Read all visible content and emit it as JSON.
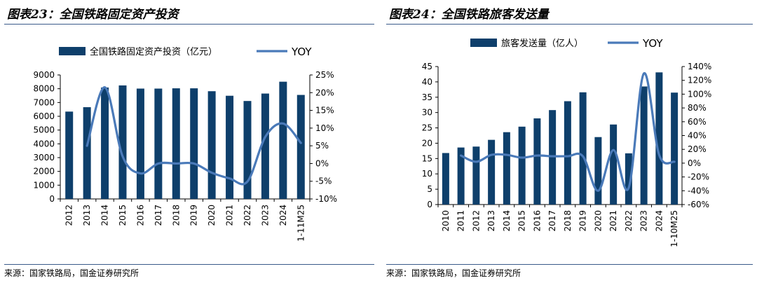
{
  "colors": {
    "bar": "#0e3f6b",
    "line": "#4a7ab9",
    "rule": "#3a5a8a"
  },
  "chart_data": [
    {
      "type": "bar",
      "figure_title": "图表23：全国铁路固定资产投资",
      "source": "来源：国家铁路局，国金证券研究所",
      "categories": [
        "2012",
        "2013",
        "2014",
        "2015",
        "2016",
        "2017",
        "2018",
        "2019",
        "2020",
        "2021",
        "2022",
        "2023",
        "2024",
        "1-11M25"
      ],
      "series": [
        {
          "name": "全国铁路固定资产投资（亿元）",
          "kind": "bar",
          "axis": "left",
          "values": [
            6340,
            6660,
            8090,
            8240,
            8010,
            8010,
            8030,
            8030,
            7820,
            7490,
            7110,
            7650,
            8510,
            7550
          ]
        },
        {
          "name": "YOY",
          "kind": "line",
          "axis": "right",
          "values": [
            null,
            5.0,
            21.5,
            2.0,
            -2.8,
            0.0,
            0.0,
            0.0,
            -2.6,
            -4.2,
            -5.1,
            7.5,
            11.3,
            5.8
          ]
        }
      ],
      "ylim_left": [
        0,
        9000
      ],
      "yticks_left": [
        0,
        1000,
        2000,
        3000,
        4000,
        5000,
        6000,
        7000,
        8000,
        9000
      ],
      "ytick_labels_left": [
        "0",
        "1000",
        "2000",
        "3000",
        "4000",
        "5000",
        "6000",
        "7000",
        "8000",
        "9000"
      ],
      "ylim_right": [
        -10,
        25
      ],
      "yticks_right": [
        -10,
        -5,
        0,
        5,
        10,
        15,
        20,
        25
      ],
      "ytick_labels_right": [
        "-10%",
        "-5%",
        "0%",
        "5%",
        "10%",
        "15%",
        "20%",
        "25%"
      ],
      "legend_position": "top"
    },
    {
      "type": "bar",
      "figure_title": "图表24：全国铁路旅客发送量",
      "source": "来源：国家铁路局，国金证券研究所",
      "categories": [
        "2010",
        "2011",
        "2012",
        "2013",
        "2014",
        "2015",
        "2016",
        "2017",
        "2018",
        "2019",
        "2020",
        "2021",
        "2022",
        "2023",
        "2024",
        "1-10M25"
      ],
      "series": [
        {
          "name": "旅客发送量（亿人）",
          "kind": "bar",
          "axis": "left",
          "values": [
            16.8,
            18.6,
            18.9,
            21.1,
            23.6,
            25.4,
            28.1,
            30.8,
            33.7,
            36.6,
            22.0,
            26.1,
            16.7,
            38.5,
            43.1,
            36.5
          ]
        },
        {
          "name": "YOY",
          "kind": "line",
          "axis": "right",
          "values": [
            null,
            11,
            2,
            12,
            12,
            8,
            11,
            10,
            10,
            10,
            -40,
            19,
            -36,
            130,
            12,
            2
          ]
        }
      ],
      "ylim_left": [
        0,
        45
      ],
      "yticks_left": [
        0,
        5,
        10,
        15,
        20,
        25,
        30,
        35,
        40,
        45
      ],
      "ytick_labels_left": [
        "0",
        "5",
        "10",
        "15",
        "20",
        "25",
        "30",
        "35",
        "40",
        "45"
      ],
      "ylim_right": [
        -60,
        140
      ],
      "yticks_right": [
        -60,
        -40,
        -20,
        0,
        20,
        40,
        60,
        80,
        100,
        120,
        140
      ],
      "ytick_labels_right": [
        "-60%",
        "-40%",
        "-20%",
        "0%",
        "20%",
        "40%",
        "60%",
        "80%",
        "100%",
        "120%",
        "140%"
      ],
      "legend_position": "top"
    }
  ]
}
